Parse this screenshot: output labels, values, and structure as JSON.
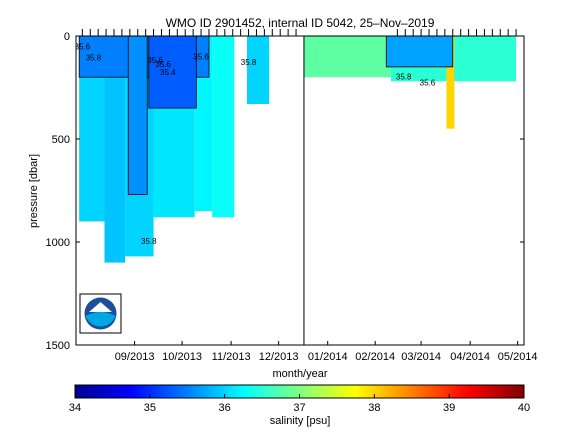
{
  "chart_data": {
    "type": "heatmap",
    "title": "WMO ID 2901452, internal ID 5042, 25–Nov–2019",
    "xlabel": "month/year",
    "ylabel": "pressure [dbar]",
    "x_ticks": [
      "09/2013",
      "10/2013",
      "11/2013",
      "12/2013",
      "01/2014",
      "02/2014",
      "03/2014",
      "04/2014",
      "05/2014"
    ],
    "y_ticks": [
      0,
      500,
      1000,
      1500
    ],
    "ylim": [
      1500,
      0
    ],
    "xlim": [
      "2013-08-10",
      "2014-05-20"
    ],
    "y_inverted": true,
    "year_boundary": "2014-01-01",
    "colorbar": {
      "label": "salinity [psu]",
      "range": [
        34,
        40
      ],
      "ticks": [
        34,
        35,
        36,
        37,
        38,
        39,
        40
      ],
      "colormap": "jet"
    },
    "contour_labels": [
      {
        "date": "2013-08-14",
        "pressure": 65,
        "text": "35.6"
      },
      {
        "date": "2013-08-21",
        "pressure": 120,
        "text": "35.8"
      },
      {
        "date": "2013-09-29",
        "pressure": 130,
        "text": "35.6"
      },
      {
        "date": "2013-10-04",
        "pressure": 150,
        "text": "35.6"
      },
      {
        "date": "2013-10-07",
        "pressure": 190,
        "text": "35.4"
      },
      {
        "date": "2013-10-28",
        "pressure": 115,
        "text": "35.6"
      },
      {
        "date": "2013-11-27",
        "pressure": 140,
        "text": "35.8"
      },
      {
        "date": "2013-09-25",
        "pressure": 1010,
        "text": "35.8"
      },
      {
        "date": "2014-03-05",
        "pressure": 210,
        "text": "35.8"
      },
      {
        "date": "2014-03-20",
        "pressure": 240,
        "text": "35.6"
      }
    ],
    "profile_dates": [
      "2013-08-14",
      "2013-08-19",
      "2013-08-24",
      "2013-08-29",
      "2013-09-03",
      "2013-09-08",
      "2013-09-13",
      "2013-09-18",
      "2013-09-23",
      "2013-09-28",
      "2013-10-03",
      "2013-10-08",
      "2013-10-13",
      "2013-10-18",
      "2013-10-23",
      "2013-10-28",
      "2013-11-02",
      "2013-11-07",
      "2013-11-12",
      "2013-11-17",
      "2013-11-22",
      "2013-11-27",
      "2013-12-02",
      "2013-12-07",
      "2013-12-12",
      "2013-12-17",
      "2013-12-22",
      "2013-12-27",
      "2014-03-01",
      "2014-03-06",
      "2014-03-11",
      "2014-03-16",
      "2014-03-21",
      "2014-03-26",
      "2014-03-31",
      "2014-04-05",
      "2014-04-10",
      "2014-04-15",
      "2014-04-20",
      "2014-04-25",
      "2014-04-30",
      "2014-05-05",
      "2014-05-10",
      "2014-05-15"
    ],
    "panels": [
      {
        "from": "2013-08-12",
        "to": "2013-08-28",
        "max_pressure": 900,
        "salinity": 36.0
      },
      {
        "from": "2013-08-28",
        "to": "2013-09-10",
        "max_pressure": 1100,
        "salinity": 35.9
      },
      {
        "from": "2013-09-10",
        "to": "2013-09-28",
        "max_pressure": 1070,
        "salinity": 36.0
      },
      {
        "from": "2013-09-28",
        "to": "2013-10-24",
        "max_pressure": 880,
        "salinity": 36.1
      },
      {
        "from": "2013-10-24",
        "to": "2013-11-04",
        "max_pressure": 850,
        "salinity": 36.2
      },
      {
        "from": "2013-11-04",
        "to": "2013-11-18",
        "max_pressure": 880,
        "salinity": 36.3
      },
      {
        "from": "2013-11-26",
        "to": "2013-12-10",
        "max_pressure": 330,
        "salinity": 36.0
      },
      {
        "from": "2014-01-01",
        "to": "2014-03-20",
        "max_pressure": 200,
        "salinity": 36.8
      },
      {
        "from": "2014-02-25",
        "to": "2014-05-15",
        "max_pressure": 220,
        "salinity": 36.5
      },
      {
        "from": "2014-04-01",
        "to": "2014-04-06",
        "max_pressure": 450,
        "salinity": 38.0
      }
    ],
    "fresh_cores": [
      {
        "from": "2013-08-12",
        "to": "2013-11-02",
        "max_pressure": 200,
        "salinity": 35.5
      },
      {
        "from": "2013-09-25",
        "to": "2013-10-25",
        "max_pressure": 350,
        "salinity": 35.3
      },
      {
        "from": "2013-09-12",
        "to": "2013-09-24",
        "max_pressure": 770,
        "salinity": 35.6
      },
      {
        "from": "2014-02-22",
        "to": "2014-04-05",
        "max_pressure": 150,
        "salinity": 35.7
      }
    ],
    "logo": "noaa-logo"
  }
}
